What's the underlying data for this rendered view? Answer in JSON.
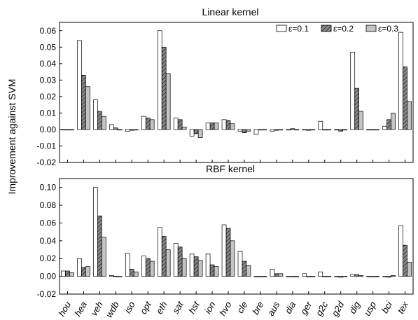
{
  "ylabel": "Improvement against SVM",
  "chart_data": [
    {
      "type": "bar",
      "title": "Linear kernel",
      "ylim": [
        -0.02,
        0.065
      ],
      "yticks": [
        "0.06",
        "0.05",
        "0.04",
        "0.03",
        "0.02",
        "0.01",
        "0.00",
        "-0.01",
        "-0.02"
      ],
      "tick_values": [
        0.06,
        0.05,
        0.04,
        0.03,
        0.02,
        0.01,
        0.0,
        -0.01,
        -0.02
      ],
      "legend_position": "top-right",
      "categories": [
        "hou",
        "hea",
        "veh",
        "wdb",
        "iso",
        "opt",
        "eth",
        "sat",
        "hst",
        "ion",
        "hvo",
        "cle",
        "bre",
        "aus",
        "dia",
        "ger",
        "g2c",
        "g2d",
        "dig",
        "usp",
        "bci",
        "tex"
      ],
      "series": [
        {
          "name": "ε=0.1",
          "values": [
            0.0,
            0.054,
            0.018,
            0.003,
            -0.001,
            0.008,
            0.06,
            0.007,
            -0.004,
            0.004,
            0.006,
            -0.001,
            -0.003,
            -0.001,
            0.0,
            0.0,
            0.005,
            0.0,
            0.047,
            0.0,
            0.002,
            0.059
          ]
        },
        {
          "name": "ε=0.2",
          "values": [
            0.0,
            0.033,
            0.011,
            0.001,
            -0.0005,
            0.007,
            0.05,
            0.006,
            -0.0025,
            0.004,
            0.0055,
            -0.002,
            0.0,
            -0.0005,
            0.0005,
            -0.0005,
            0.0,
            -0.001,
            0.025,
            0.0,
            0.006,
            0.038
          ]
        },
        {
          "name": "ε=0.3",
          "values": [
            0.0,
            0.026,
            0.008,
            0.0,
            0.0,
            0.006,
            0.034,
            0.0015,
            -0.005,
            0.004,
            0.0035,
            -0.001,
            0.0,
            0.0,
            0.0,
            0.0,
            0.0,
            0.0,
            0.011,
            0.0,
            0.01,
            0.017
          ]
        }
      ]
    },
    {
      "type": "bar",
      "title": "RBF kernel",
      "ylim": [
        -0.02,
        0.11
      ],
      "yticks": [
        "0.10",
        "0.08",
        "0.06",
        "0.04",
        "0.02",
        "0.00",
        "-0.02"
      ],
      "tick_values": [
        0.1,
        0.08,
        0.06,
        0.04,
        0.02,
        0.0,
        -0.02
      ],
      "categories": [
        "hou",
        "hea",
        "veh",
        "wdb",
        "iso",
        "opt",
        "eth",
        "sat",
        "hst",
        "ion",
        "hvo",
        "cle",
        "bre",
        "aus",
        "dia",
        "ger",
        "g2c",
        "g2d",
        "dig",
        "usp",
        "bci",
        "tex"
      ],
      "series": [
        {
          "name": "ε=0.1",
          "values": [
            0.006,
            0.02,
            0.1,
            0.001,
            0.026,
            0.023,
            0.055,
            0.037,
            0.025,
            0.025,
            0.058,
            0.028,
            0.0,
            0.008,
            0.0,
            0.003,
            0.005,
            0.0,
            0.002,
            0.0,
            0.0,
            0.057
          ]
        },
        {
          "name": "ε=0.2",
          "values": [
            0.006,
            0.01,
            0.068,
            0.0,
            0.008,
            0.02,
            0.045,
            0.033,
            0.022,
            0.013,
            0.054,
            0.017,
            0.0,
            0.003,
            0.0,
            0.0,
            0.0,
            -0.001,
            0.002,
            0.0,
            -0.001,
            0.035
          ]
        },
        {
          "name": "ε=0.3",
          "values": [
            0.004,
            0.011,
            0.044,
            0.0,
            0.005,
            0.017,
            0.03,
            0.02,
            0.018,
            0.011,
            0.04,
            0.012,
            0.0,
            0.003,
            0.0,
            0.0,
            0.0,
            0.0,
            0.001,
            0.0,
            0.001,
            0.016
          ]
        }
      ]
    }
  ]
}
